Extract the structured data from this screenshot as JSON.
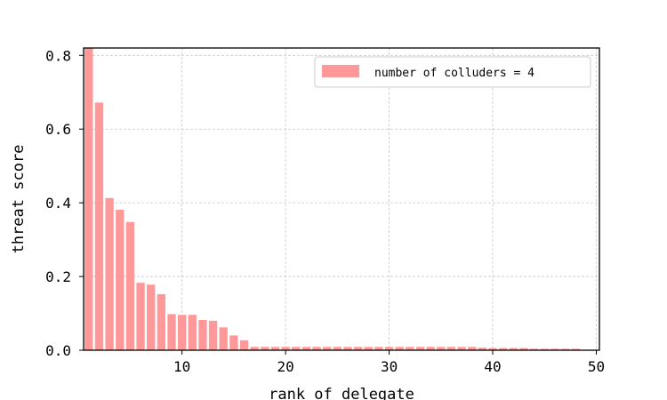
{
  "chart_data": {
    "type": "bar",
    "xlabel": "rank of delegate",
    "ylabel": "threat score",
    "xlim": [
      0.5,
      50.3
    ],
    "ylim": [
      0,
      0.82
    ],
    "xticks": [
      10,
      20,
      30,
      40,
      50
    ],
    "yticks": [
      0.0,
      0.2,
      0.4,
      0.6,
      0.8
    ],
    "xtick_labels": [
      "10",
      "20",
      "30",
      "40",
      "50"
    ],
    "ytick_labels": [
      "0.0",
      "0.2",
      "0.4",
      "0.6",
      "0.8"
    ],
    "grid": true,
    "legend_position": "top-right",
    "color": "#ff9999",
    "series": [
      {
        "name": "number of colluders = 4",
        "x": [
          1,
          2,
          3,
          4,
          5,
          6,
          7,
          8,
          9,
          10,
          11,
          12,
          13,
          14,
          15,
          16,
          17,
          18,
          19,
          20,
          21,
          22,
          23,
          24,
          25,
          26,
          27,
          28,
          29,
          30,
          31,
          32,
          33,
          34,
          35,
          36,
          37,
          38,
          39,
          40,
          41,
          42,
          43,
          44,
          45,
          46,
          47,
          48
        ],
        "values": [
          0.82,
          0.672,
          0.413,
          0.381,
          0.348,
          0.183,
          0.178,
          0.152,
          0.098,
          0.096,
          0.096,
          0.082,
          0.08,
          0.062,
          0.04,
          0.027,
          0.009,
          0.009,
          0.009,
          0.009,
          0.009,
          0.009,
          0.009,
          0.009,
          0.009,
          0.009,
          0.009,
          0.009,
          0.009,
          0.009,
          0.009,
          0.009,
          0.009,
          0.009,
          0.009,
          0.009,
          0.009,
          0.009,
          0.007,
          0.006,
          0.006,
          0.006,
          0.006,
          0.004,
          0.004,
          0.004,
          0.004,
          0.004
        ]
      }
    ]
  }
}
